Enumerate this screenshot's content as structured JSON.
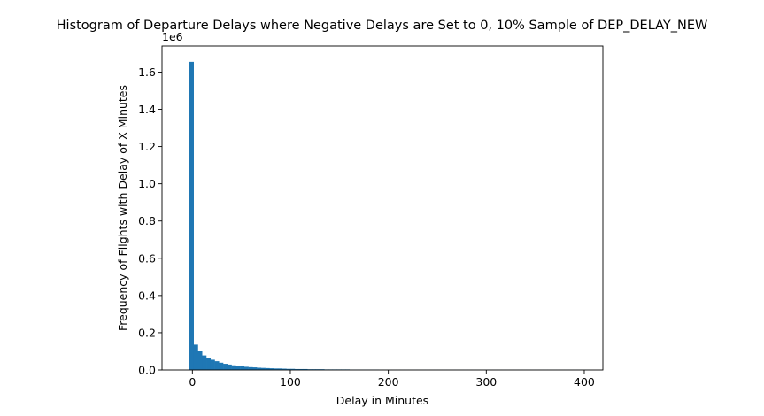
{
  "chart_data": {
    "type": "bar",
    "title": "Histogram of Departure Delays where Negative Delays are Set to 0, 10% Sample of DEP_DELAY_NEW",
    "xlabel": "Delay in Minutes",
    "ylabel": "Frequency of Flights with Delay of X Minutes",
    "y_offset_label": "1e6",
    "xlim": [
      -31,
      419
    ],
    "ylim": [
      0,
      1.74
    ],
    "xticks": [
      0,
      100,
      200,
      300,
      400
    ],
    "xtick_labels": [
      "0",
      "100",
      "200",
      "300",
      "400"
    ],
    "yticks": [
      0,
      0.2,
      0.4,
      0.6,
      0.8,
      1.0,
      1.2,
      1.4,
      1.6
    ],
    "ytick_labels": [
      "0.0",
      "0.2",
      "0.4",
      "0.6",
      "0.8",
      "1.0",
      "1.2",
      "1.4",
      "1.6"
    ],
    "bar_color": "#1f77b4",
    "bin_start": -3,
    "bin_width": 4.3,
    "values_millions": [
      1.655,
      0.136,
      0.1,
      0.078,
      0.065,
      0.055,
      0.047,
      0.039,
      0.033,
      0.029,
      0.025,
      0.022,
      0.019,
      0.017,
      0.015,
      0.014,
      0.012,
      0.011,
      0.01,
      0.009,
      0.008,
      0.008,
      0.007,
      0.006,
      0.006,
      0.005,
      0.005,
      0.005,
      0.004,
      0.004,
      0.004,
      0.004,
      0.003,
      0.003,
      0.003,
      0.003,
      0.003,
      0.003,
      0.002,
      0.002,
      0.002,
      0.002,
      0.002,
      0.002,
      0.002,
      0.001,
      0.001,
      0.001,
      0.001,
      0.001,
      0.001,
      0.001,
      0.001,
      0.001,
      0.001,
      0.001,
      0.001,
      0.001,
      0.001,
      0.001,
      0.001,
      0.001,
      0.001,
      0.001,
      0.001,
      0.001,
      0.001,
      0.001,
      0.001,
      0.001,
      0.001,
      0.001,
      0.001,
      0.001,
      0.001,
      0.001,
      0.001,
      0.001,
      0.001,
      0.001,
      0.001,
      0.001,
      0.001,
      0.001,
      0.001,
      0.001,
      0.001,
      0.001,
      0.001,
      0.001,
      0.001,
      0.001,
      0.001,
      0.001,
      0.001
    ]
  }
}
